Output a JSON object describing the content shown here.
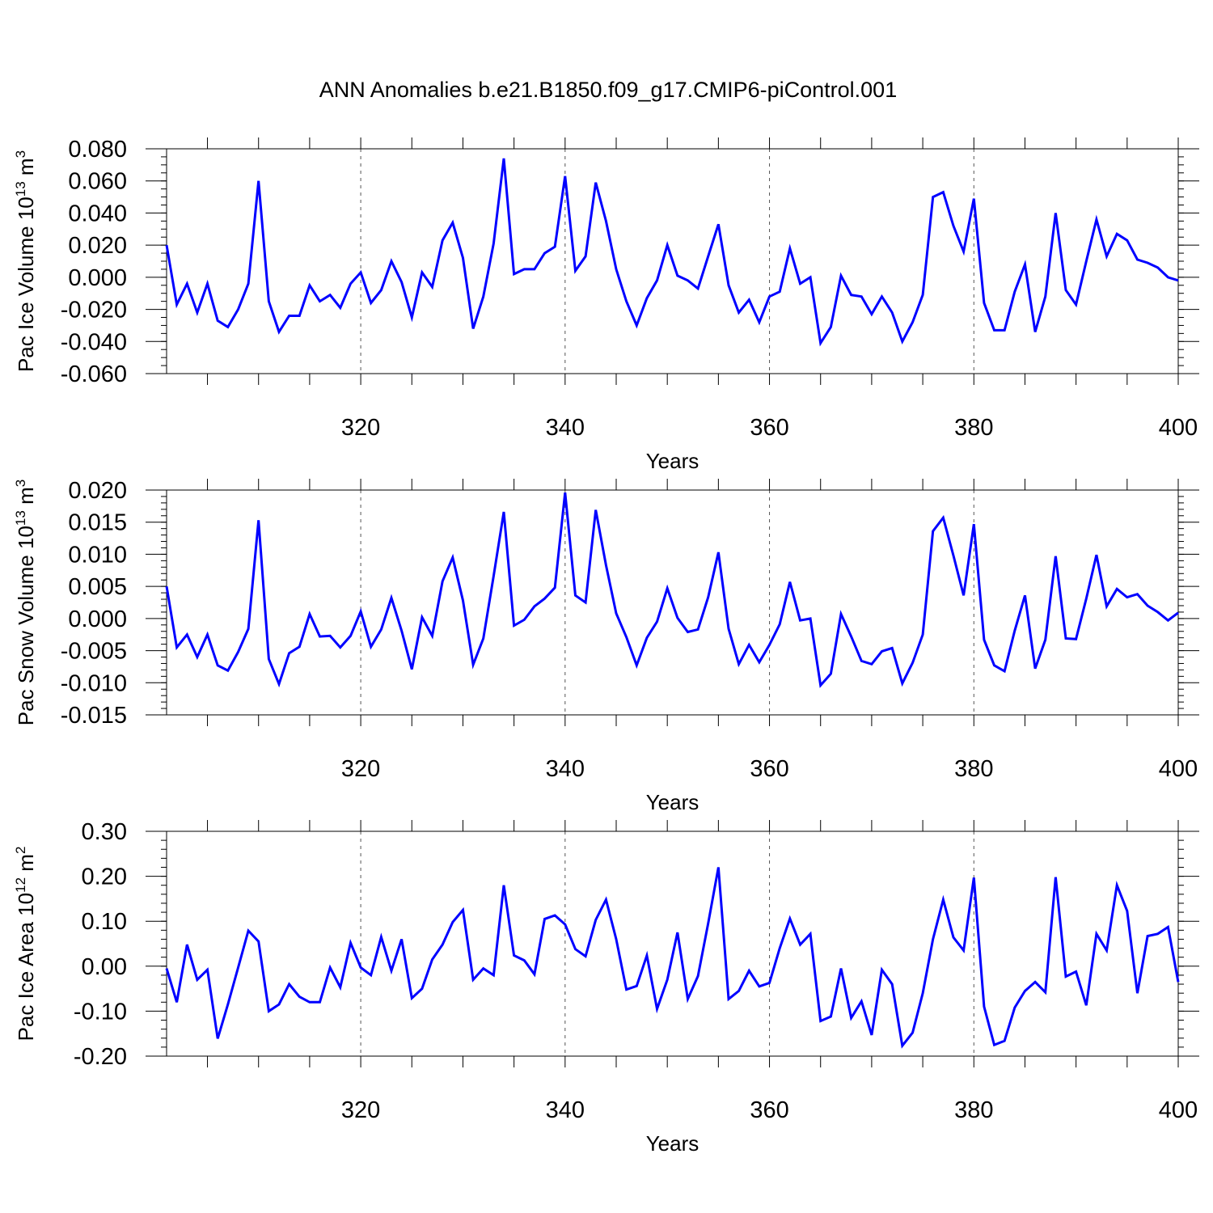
{
  "title": "ANN Anomalies b.e21.B1850.f09_g17.CMIP6-piControl.001",
  "series_color": "#0000ff",
  "x_ticks": [
    320,
    340,
    360,
    380,
    400
  ],
  "chart_data": [
    {
      "type": "line",
      "xlabel": "Years",
      "ylabel_prefix": "Pac Ice Volume 10",
      "ylabel_exponent": "13",
      "ylabel_unit": " m",
      "ylabel_unit_exponent": "3",
      "xlim": [
        301,
        400
      ],
      "ylim": [
        -0.06,
        0.08
      ],
      "y_ticks": [
        -0.06,
        -0.04,
        -0.02,
        0.0,
        0.02,
        0.04,
        0.06,
        0.08
      ],
      "y_tick_labels": [
        "-0.060",
        "-0.040",
        "-0.020",
        "0.000",
        "0.020",
        "0.040",
        "0.060",
        "0.080"
      ],
      "y_minor_step": 0.005,
      "x_start": 301,
      "values": [
        0.02,
        -0.017,
        -0.004,
        -0.022,
        -0.004,
        -0.027,
        -0.031,
        -0.02,
        -0.004,
        0.06,
        -0.015,
        -0.034,
        -0.024,
        -0.024,
        -0.005,
        -0.015,
        -0.011,
        -0.019,
        -0.004,
        0.003,
        -0.016,
        -0.008,
        0.01,
        -0.003,
        -0.025,
        0.003,
        -0.006,
        0.023,
        0.034,
        0.012,
        -0.032,
        -0.012,
        0.021,
        0.074,
        0.002,
        0.005,
        0.005,
        0.015,
        0.019,
        0.063,
        0.004,
        0.013,
        0.059,
        0.035,
        0.005,
        -0.015,
        -0.03,
        -0.013,
        -0.002,
        0.02,
        0.001,
        -0.002,
        -0.007,
        0.013,
        0.033,
        -0.005,
        -0.022,
        -0.014,
        -0.028,
        -0.012,
        -0.009,
        0.018,
        -0.004,
        0.0,
        -0.041,
        -0.031,
        0.001,
        -0.011,
        -0.012,
        -0.023,
        -0.012,
        -0.022,
        -0.04,
        -0.028,
        -0.011,
        0.05,
        0.053,
        0.032,
        0.016,
        0.049,
        -0.016,
        -0.033,
        -0.033,
        -0.009,
        0.008,
        -0.034,
        -0.012,
        0.04,
        -0.008,
        -0.017,
        0.01,
        0.036,
        0.013,
        0.027,
        0.023,
        0.011,
        0.009,
        0.006,
        0.0,
        -0.002
      ]
    },
    {
      "type": "line",
      "xlabel": "Years",
      "ylabel_prefix": "Pac Snow Volume 10",
      "ylabel_exponent": "13",
      "ylabel_unit": " m",
      "ylabel_unit_exponent": "3",
      "xlim": [
        301,
        400
      ],
      "ylim": [
        -0.015,
        0.02
      ],
      "y_ticks": [
        -0.015,
        -0.01,
        -0.005,
        0.0,
        0.005,
        0.01,
        0.015,
        0.02
      ],
      "y_tick_labels": [
        "-0.015",
        "-0.010",
        "-0.005",
        "0.000",
        "0.005",
        "0.010",
        "0.015",
        "0.020"
      ],
      "y_minor_step": 0.001,
      "x_start": 301,
      "values": [
        0.005,
        -0.0045,
        -0.0025,
        -0.006,
        -0.0025,
        -0.0073,
        -0.0081,
        -0.0052,
        -0.0016,
        0.0153,
        -0.0063,
        -0.0102,
        -0.0054,
        -0.0044,
        0.0007,
        -0.0028,
        -0.0027,
        -0.0045,
        -0.0027,
        0.0011,
        -0.0044,
        -0.0017,
        0.0032,
        -0.0019,
        -0.0079,
        0.0002,
        -0.0027,
        0.0058,
        0.0095,
        0.0028,
        -0.0072,
        -0.0031,
        0.0066,
        0.0166,
        -0.0011,
        -0.0002,
        0.0019,
        0.0031,
        0.0048,
        0.0196,
        0.0036,
        0.0025,
        0.0169,
        0.0083,
        0.0008,
        -0.0029,
        -0.0073,
        -0.003,
        -0.0005,
        0.0047,
        0.0001,
        -0.0021,
        -0.0017,
        0.0033,
        0.0103,
        -0.0016,
        -0.0071,
        -0.0041,
        -0.0068,
        -0.0041,
        -0.0009,
        0.0057,
        -0.0003,
        0.0,
        -0.0104,
        -0.0086,
        0.0007,
        -0.0028,
        -0.0066,
        -0.0071,
        -0.0051,
        -0.0046,
        -0.0101,
        -0.0069,
        -0.0025,
        0.0136,
        0.0157,
        0.0098,
        0.0036,
        0.0147,
        -0.0033,
        -0.0073,
        -0.0082,
        -0.0019,
        0.0036,
        -0.0078,
        -0.0033,
        0.0097,
        -0.0031,
        -0.0032,
        0.0031,
        0.0099,
        0.0019,
        0.0046,
        0.0033,
        0.0038,
        0.002,
        0.001,
        -0.0003,
        0.0009
      ]
    },
    {
      "type": "line",
      "xlabel": "Years",
      "ylabel_prefix": "Pac Ice Area 10",
      "ylabel_exponent": "12",
      "ylabel_unit": " m",
      "ylabel_unit_exponent": "2",
      "xlim": [
        301,
        400
      ],
      "ylim": [
        -0.2,
        0.3
      ],
      "y_ticks": [
        -0.2,
        -0.1,
        0.0,
        0.1,
        0.2,
        0.3
      ],
      "y_tick_labels": [
        "-0.20",
        "-0.10",
        "0.00",
        "0.10",
        "0.20",
        "0.30"
      ],
      "y_minor_step": 0.02,
      "x_start": 301,
      "values": [
        -0.005,
        -0.08,
        0.048,
        -0.03,
        -0.008,
        -0.161,
        -0.085,
        -0.003,
        0.079,
        0.055,
        -0.1,
        -0.085,
        -0.04,
        -0.068,
        -0.08,
        -0.08,
        -0.003,
        -0.047,
        0.052,
        -0.003,
        -0.02,
        0.065,
        -0.01,
        0.06,
        -0.071,
        -0.05,
        0.015,
        0.048,
        0.098,
        0.125,
        -0.03,
        -0.005,
        -0.02,
        0.18,
        0.024,
        0.013,
        -0.018,
        0.105,
        0.113,
        0.093,
        0.038,
        0.022,
        0.103,
        0.148,
        0.06,
        -0.052,
        -0.044,
        0.024,
        -0.095,
        -0.03,
        0.075,
        -0.073,
        -0.022,
        0.095,
        0.22,
        -0.073,
        -0.055,
        -0.01,
        -0.045,
        -0.037,
        0.04,
        0.106,
        0.048,
        0.072,
        -0.122,
        -0.112,
        -0.005,
        -0.115,
        -0.078,
        -0.153,
        -0.008,
        -0.04,
        -0.177,
        -0.148,
        -0.06,
        0.06,
        0.148,
        0.064,
        0.035,
        0.197,
        -0.09,
        -0.175,
        -0.166,
        -0.092,
        -0.055,
        -0.035,
        -0.058,
        0.198,
        -0.023,
        -0.012,
        -0.087,
        0.072,
        0.035,
        0.18,
        0.123,
        -0.06,
        0.067,
        0.072,
        0.087,
        -0.035
      ]
    }
  ]
}
